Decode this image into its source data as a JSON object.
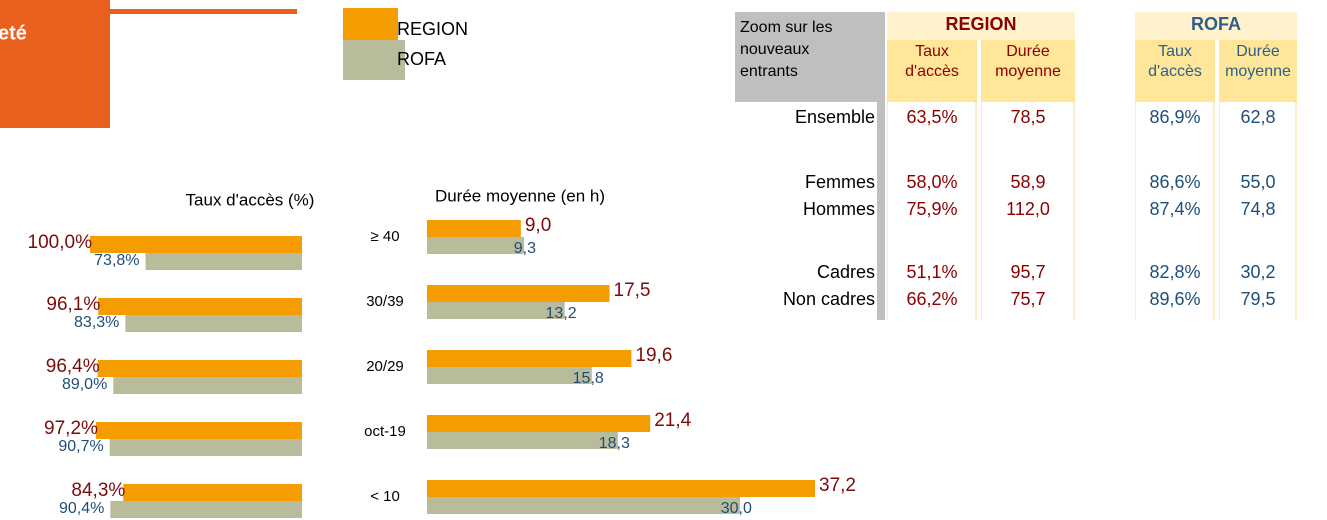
{
  "header": {
    "title": "eté"
  },
  "chart_data": [
    {
      "type": "bar",
      "orientation": "horizontal-left",
      "title": "Taux d'accès (%)",
      "categories": [
        null,
        null,
        null,
        null,
        null
      ],
      "series": [
        {
          "name": "REGION",
          "color": "#f59c00",
          "label_color": "#7b0c0c",
          "values": [
            100.0,
            96.1,
            96.4,
            97.2,
            84.3
          ],
          "value_labels": [
            "100,0%",
            "96,1%",
            "96,4%",
            "97,2%",
            "84,3%"
          ]
        },
        {
          "name": "ROFA",
          "color": "#b8bc9b",
          "label_color": "#1f4e79",
          "values": [
            73.8,
            83.3,
            89.0,
            90.7,
            90.4
          ],
          "value_labels": [
            "73,8%",
            "83,3%",
            "89,0%",
            "90,7%",
            "90,4%"
          ]
        }
      ]
    },
    {
      "type": "bar",
      "orientation": "horizontal-right",
      "title": "Durée moyenne (en h)",
      "categories": [
        "≥ 40",
        "30/39",
        "20/29",
        "oct-19",
        "< 10"
      ],
      "series": [
        {
          "color": "#f59c00",
          "label_color": "#7b0c0c",
          "values": [
            9.0,
            17.5,
            19.6,
            21.4,
            37.2
          ],
          "value_labels": [
            "9,0",
            "17,5",
            "19,6",
            "21,4",
            "37,2"
          ]
        },
        {
          "color": "#b8bc9b",
          "label_color": "#1f4e79",
          "values": [
            9.3,
            13.2,
            15.8,
            18.3,
            30.0
          ],
          "value_labels": [
            "9,3",
            "13,2",
            "15,8",
            "18,3",
            "30,0"
          ]
        }
      ]
    }
  ],
  "table": {
    "title": "Zoom sur les nouveaux entrants",
    "groups": [
      "REGION",
      "ROFA"
    ],
    "columns": [
      "Taux d'accès",
      "Durée moyenne",
      "Taux d'accès",
      "Durée moyenne"
    ],
    "rows": [
      {
        "label": "Ensemble",
        "cells": [
          "63,5%",
          "78,5",
          "86,9%",
          "62,8"
        ]
      },
      {
        "label": "Femmes",
        "cells": [
          "58,0%",
          "58,9",
          "86,6%",
          "55,0"
        ]
      },
      {
        "label": "Hommes",
        "cells": [
          "75,9%",
          "112,0",
          "87,4%",
          "74,8"
        ]
      },
      {
        "label": "Cadres",
        "cells": [
          "51,1%",
          "95,7",
          "82,8%",
          "30,2"
        ]
      },
      {
        "label": "Non cadres",
        "cells": [
          "66,2%",
          "75,7",
          "89,6%",
          "79,5"
        ]
      }
    ]
  }
}
